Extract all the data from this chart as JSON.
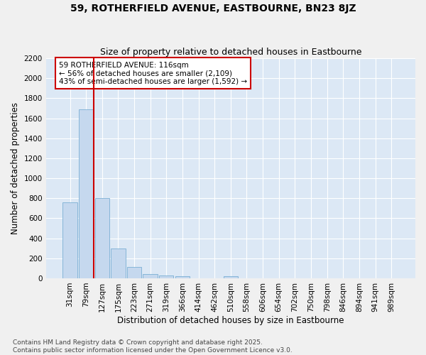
{
  "title": "59, ROTHERFIELD AVENUE, EASTBOURNE, BN23 8JZ",
  "subtitle": "Size of property relative to detached houses in Eastbourne",
  "xlabel": "Distribution of detached houses by size in Eastbourne",
  "ylabel": "Number of detached properties",
  "categories": [
    "31sqm",
    "79sqm",
    "127sqm",
    "175sqm",
    "223sqm",
    "271sqm",
    "319sqm",
    "366sqm",
    "414sqm",
    "462sqm",
    "510sqm",
    "558sqm",
    "606sqm",
    "654sqm",
    "702sqm",
    "750sqm",
    "798sqm",
    "846sqm",
    "894sqm",
    "941sqm",
    "989sqm"
  ],
  "values": [
    760,
    1690,
    800,
    300,
    115,
    40,
    28,
    22,
    0,
    0,
    20,
    0,
    0,
    0,
    0,
    0,
    0,
    0,
    0,
    0,
    0
  ],
  "bar_color": "#c5d8ee",
  "bar_edge_color": "#7bafd4",
  "vline_color": "#cc0000",
  "vline_pos": 1.5,
  "annotation_text": "59 ROTHERFIELD AVENUE: 116sqm\n← 56% of detached houses are smaller (2,109)\n43% of semi-detached houses are larger (1,592) →",
  "annotation_box_color": "#ffffff",
  "annotation_box_edge": "#cc0000",
  "ylim_max": 2200,
  "yticks": [
    0,
    200,
    400,
    600,
    800,
    1000,
    1200,
    1400,
    1600,
    1800,
    2000,
    2200
  ],
  "bg_color": "#dce8f5",
  "grid_color": "#ffffff",
  "fig_bg_color": "#f0f0f0",
  "footer": "Contains HM Land Registry data © Crown copyright and database right 2025.\nContains public sector information licensed under the Open Government Licence v3.0.",
  "title_fontsize": 10,
  "subtitle_fontsize": 9,
  "axis_label_fontsize": 8.5,
  "tick_fontsize": 7.5,
  "annotation_fontsize": 7.5,
  "footer_fontsize": 6.5
}
